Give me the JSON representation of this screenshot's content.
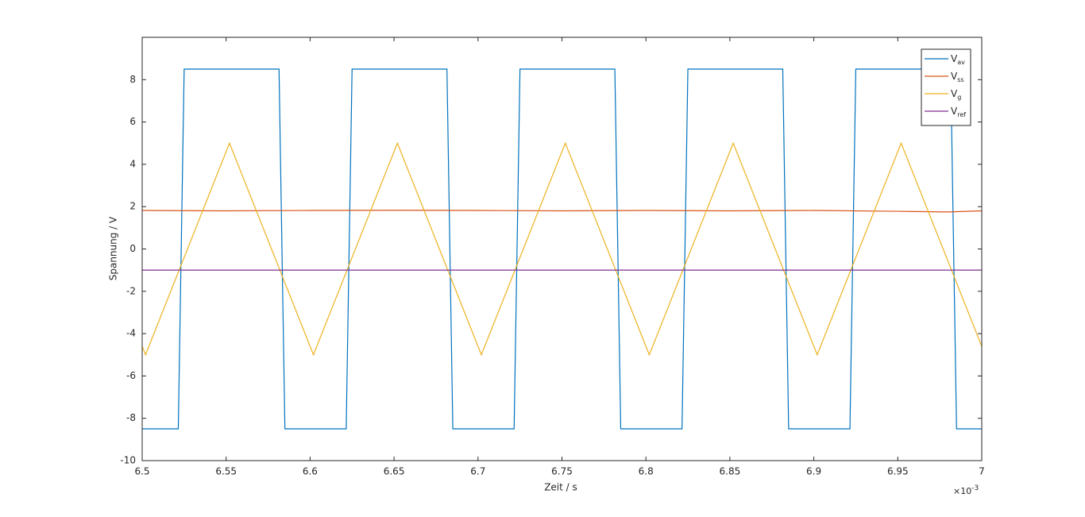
{
  "chart_data": {
    "type": "line",
    "xlabel": "Zeit / s",
    "ylabel": "Spannung / V",
    "x_exponent_label": {
      "base": "×10",
      "exponent": "-3"
    },
    "xlim": [
      6.5,
      7
    ],
    "xticks": [
      6.5,
      6.55,
      6.6,
      6.65,
      6.7,
      6.75,
      6.8,
      6.85,
      6.9,
      6.95,
      7
    ],
    "ylim": [
      -10,
      10
    ],
    "yticks": [
      -10,
      -8,
      -6,
      -4,
      -2,
      0,
      2,
      4,
      6,
      8
    ],
    "grid": false,
    "legend": "upper right",
    "series": [
      {
        "name": "V",
        "subscript": "av",
        "color": "#0072bd",
        "x": [
          6.5,
          6.5215,
          6.525,
          6.5815,
          6.585,
          6.6215,
          6.625,
          6.6815,
          6.685,
          6.7215,
          6.725,
          6.7815,
          6.785,
          6.8215,
          6.825,
          6.8815,
          6.885,
          6.9215,
          6.925,
          6.9815,
          6.985,
          7
        ],
        "values": [
          -8.5,
          -8.5,
          8.5,
          8.5,
          -8.5,
          -8.5,
          8.5,
          8.5,
          -8.5,
          -8.5,
          8.5,
          8.5,
          -8.5,
          -8.5,
          8.5,
          8.5,
          -8.5,
          -8.5,
          8.5,
          8.5,
          -8.5,
          -8.5
        ]
      },
      {
        "name": "V",
        "subscript": "ss",
        "color": "#d95319",
        "x": [
          6.5,
          6.55,
          6.6,
          6.65,
          6.7,
          6.75,
          6.8,
          6.85,
          6.9,
          6.95,
          6.98,
          7
        ],
        "values": [
          1.82,
          1.8,
          1.82,
          1.83,
          1.82,
          1.8,
          1.82,
          1.8,
          1.82,
          1.78,
          1.75,
          1.8
        ]
      },
      {
        "name": "V",
        "subscript": "g",
        "color": "#edb120",
        "x": [
          6.5,
          6.502,
          6.552,
          6.602,
          6.652,
          6.702,
          6.752,
          6.802,
          6.852,
          6.902,
          6.952,
          7
        ],
        "values": [
          -4.6,
          -5,
          5,
          -5,
          5,
          -5,
          5,
          -5,
          5,
          -5,
          5,
          -4.6
        ]
      },
      {
        "name": "V",
        "subscript": "ref",
        "color": "#7e2f8e",
        "x": [
          6.5,
          7
        ],
        "values": [
          -1,
          -1
        ]
      }
    ]
  }
}
